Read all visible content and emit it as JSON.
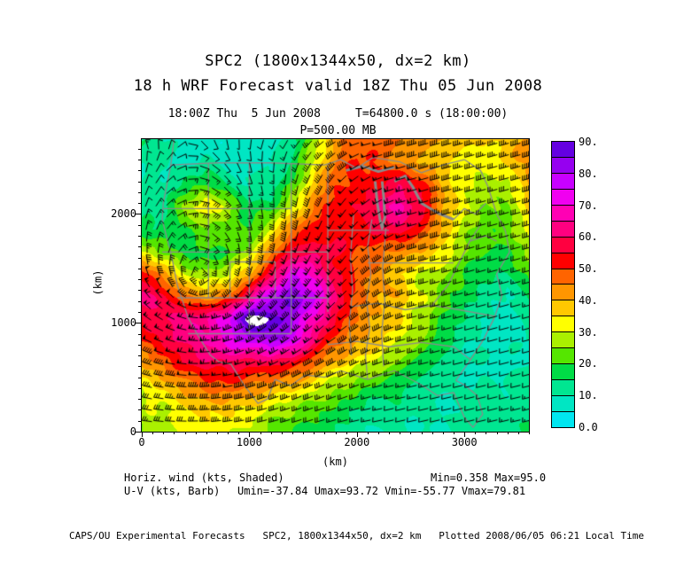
{
  "header": {
    "title_line1": "SPC2 (1800x1344x50, dx=2 km)",
    "title_line2": "18 h WRF Forecast valid 18Z Thu 05 Jun 2008",
    "subtitle_line1": "18:00Z Thu  5 Jun 2008     T=64800.0 s (18:00:00)",
    "subtitle_line2": "P=500.00 MB"
  },
  "annotations": {
    "shaded_label": "Horiz. wind (kts, Shaded)",
    "shaded_stats": "Min=0.358 Max=95.0",
    "barb_label": "U-V (kts, Barb)",
    "barb_stats": "Umin=-37.84 Umax=93.72 Vmin=-55.77 Vmax=79.81"
  },
  "footer": {
    "text": "CAPS/OU Experimental Forecasts   SPC2, 1800x1344x50, dx=2 km   Plotted 2008/06/05 06:21 Local Time"
  },
  "axes": {
    "x_label": "(km)",
    "y_label": "(km)",
    "x_range": [
      0,
      3600
    ],
    "y_range": [
      0,
      2688
    ],
    "x_major_ticks": [
      {
        "value": 0,
        "label": "0"
      },
      {
        "value": 1000,
        "label": "1000"
      },
      {
        "value": 2000,
        "label": "2000"
      },
      {
        "value": 3000,
        "label": "3000"
      }
    ],
    "y_major_ticks": [
      {
        "value": 0,
        "label": "0"
      },
      {
        "value": 1000,
        "label": "1000"
      },
      {
        "value": 2000,
        "label": "2000"
      }
    ],
    "minor_step": 100
  },
  "colorbar": {
    "levels": [
      0,
      5,
      10,
      15,
      20,
      25,
      30,
      35,
      40,
      45,
      50,
      55,
      60,
      65,
      70,
      75,
      80,
      85,
      90
    ],
    "colors": [
      "#00E6F0",
      "#00E6C3",
      "#00E691",
      "#00DC46",
      "#55E600",
      "#AAF000",
      "#FFFF00",
      "#FFC800",
      "#FF9600",
      "#FF6400",
      "#FF0000",
      "#FF0040",
      "#FF0080",
      "#FF00B4",
      "#F000F0",
      "#C800FF",
      "#9600F0",
      "#6400E1"
    ],
    "over_color": "#FFFFFF",
    "tick_labels": [
      "0.0",
      "10.",
      "20.",
      "30.",
      "40.",
      "50.",
      "60.",
      "70.",
      "80.",
      "90."
    ]
  },
  "chart_data": {
    "type": "heatmap",
    "title": "Horizontal wind speed (kts) shaded with U-V wind barbs at P=500.00 MB",
    "units": "kts",
    "x_range_km": [
      0,
      3600
    ],
    "y_range_km": [
      0,
      2688
    ],
    "grid_dx_km": 200,
    "grid_cols": 19,
    "grid_rows": 14,
    "speed_grid_rows_top_to_bottom": [
      [
        15,
        10,
        8,
        8,
        6,
        6,
        8,
        12,
        25,
        42,
        50,
        48,
        45,
        42,
        40,
        38,
        36,
        38,
        42
      ],
      [
        12,
        10,
        8,
        10,
        8,
        8,
        10,
        15,
        30,
        45,
        50,
        48,
        44,
        40,
        36,
        32,
        32,
        36,
        42
      ],
      [
        10,
        12,
        15,
        20,
        15,
        10,
        12,
        20,
        38,
        48,
        52,
        55,
        58,
        52,
        40,
        30,
        26,
        30,
        40
      ],
      [
        12,
        15,
        25,
        35,
        30,
        15,
        18,
        30,
        45,
        52,
        55,
        62,
        66,
        58,
        42,
        30,
        24,
        26,
        36
      ],
      [
        15,
        15,
        20,
        25,
        22,
        20,
        30,
        45,
        52,
        55,
        52,
        56,
        60,
        50,
        38,
        28,
        22,
        22,
        32
      ],
      [
        30,
        22,
        18,
        18,
        20,
        28,
        45,
        55,
        58,
        56,
        50,
        46,
        45,
        40,
        32,
        26,
        20,
        18,
        28
      ],
      [
        55,
        42,
        30,
        25,
        28,
        40,
        58,
        75,
        68,
        56,
        48,
        42,
        36,
        30,
        26,
        20,
        15,
        14,
        22
      ],
      [
        62,
        58,
        45,
        40,
        48,
        62,
        78,
        85,
        78,
        60,
        48,
        42,
        38,
        30,
        24,
        16,
        12,
        10,
        16
      ],
      [
        55,
        62,
        62,
        65,
        75,
        94,
        90,
        82,
        68,
        55,
        45,
        40,
        35,
        28,
        20,
        13,
        10,
        8,
        12
      ],
      [
        48,
        55,
        62,
        66,
        72,
        76,
        80,
        74,
        60,
        48,
        42,
        36,
        30,
        24,
        16,
        12,
        9,
        8,
        10
      ],
      [
        40,
        45,
        55,
        58,
        58,
        56,
        58,
        52,
        45,
        38,
        32,
        28,
        24,
        18,
        13,
        10,
        9,
        8,
        10
      ],
      [
        32,
        36,
        42,
        46,
        48,
        45,
        42,
        38,
        32,
        26,
        22,
        18,
        16,
        13,
        11,
        10,
        10,
        10,
        12
      ],
      [
        28,
        30,
        33,
        36,
        38,
        34,
        28,
        25,
        22,
        18,
        15,
        13,
        12,
        11,
        10,
        10,
        12,
        13,
        14
      ],
      [
        25,
        28,
        30,
        32,
        32,
        28,
        24,
        20,
        17,
        14,
        12,
        10,
        10,
        10,
        10,
        12,
        13,
        15,
        16
      ]
    ],
    "stats": {
      "min": 0.358,
      "max": 95.0,
      "umin": -37.84,
      "umax": 93.72,
      "vmin": -55.77,
      "vmax": 79.81
    },
    "barbs": {
      "spacing_px": 13,
      "flow": "cyclonic",
      "cyclone_center_km": [
        550,
        1400
      ]
    },
    "basemap": "US state boundaries and Great Lakes, gray overlay"
  }
}
